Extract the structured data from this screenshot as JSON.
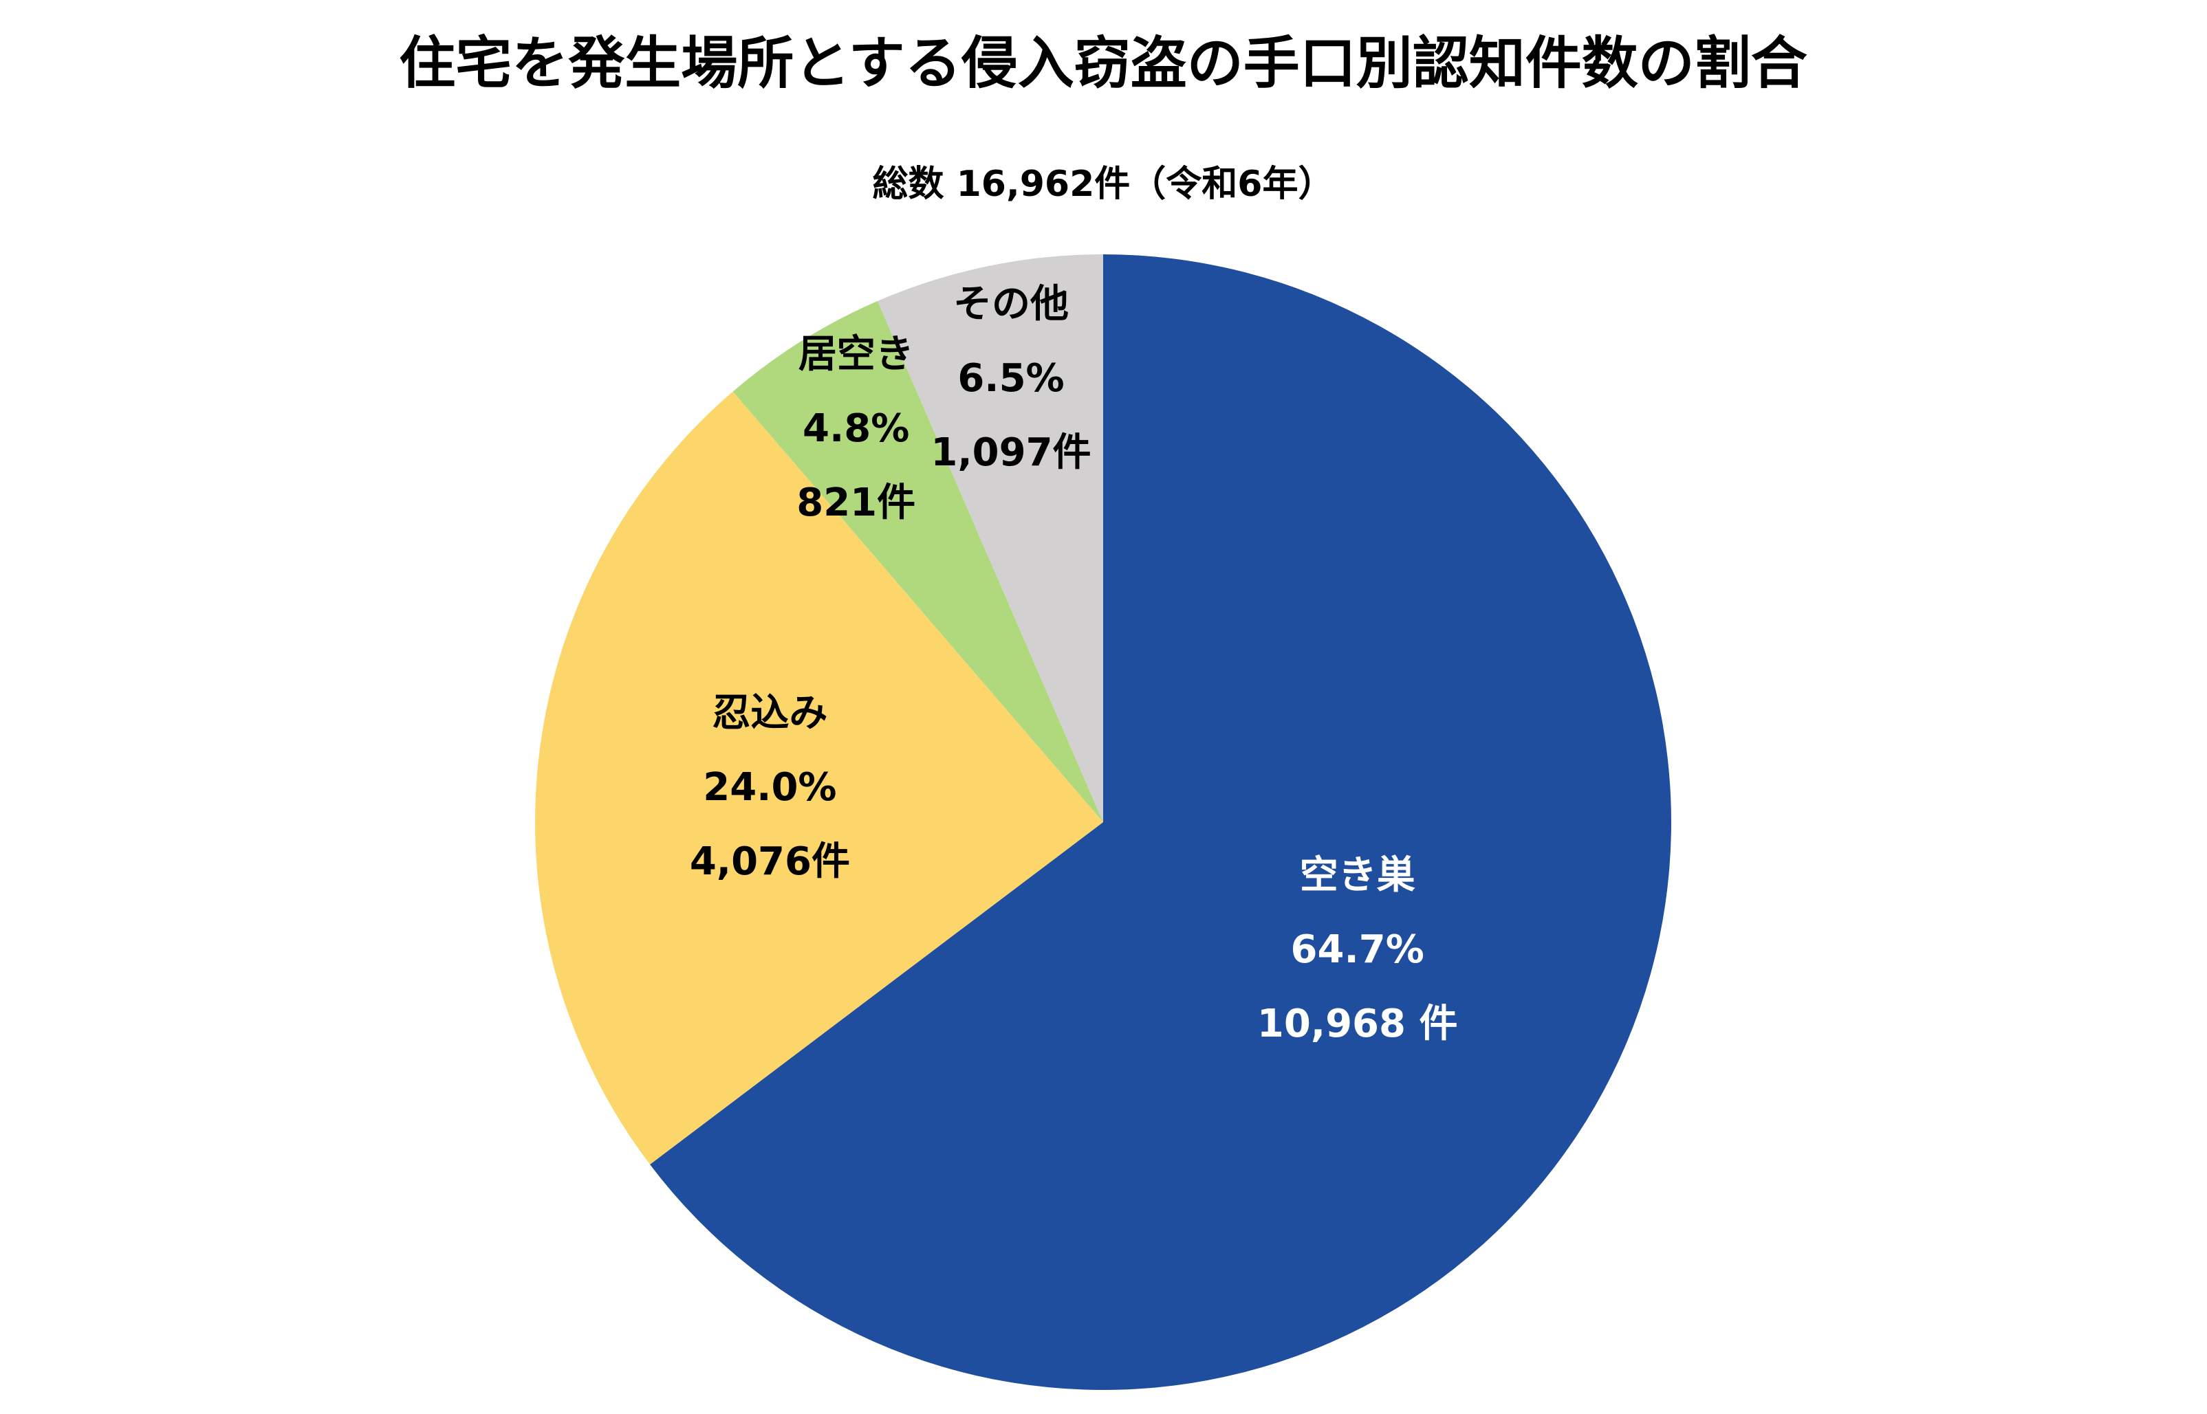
{
  "chart_data": {
    "type": "pie",
    "title": "住宅を発生場所とする侵入窃盗の手口別認知件数の割合",
    "subtitle": "総数 16,962件（令和6年）",
    "total": 16962,
    "start_direction": "top",
    "direction": "clockwise",
    "slices": [
      {
        "name": "空き巣",
        "percent": 64.7,
        "percent_label": "64.7%",
        "count": 10968,
        "count_label": "10,968 件",
        "color": "#1f4e9f",
        "text_color": "#ffffff"
      },
      {
        "name": "忍込み",
        "percent": 24.0,
        "percent_label": "24.0%",
        "count": 4076,
        "count_label": "4,076件",
        "color": "#fcd66a",
        "text_color": "#000000"
      },
      {
        "name": "居空き",
        "percent": 4.8,
        "percent_label": "4.8%",
        "count": 821,
        "count_label": "821件",
        "color": "#b0d97e",
        "text_color": "#000000"
      },
      {
        "name": "その他",
        "percent": 6.5,
        "percent_label": "6.5%",
        "count": 1097,
        "count_label": "1,097件",
        "color": "#d2d0d1",
        "text_color": "#000000"
      }
    ]
  }
}
